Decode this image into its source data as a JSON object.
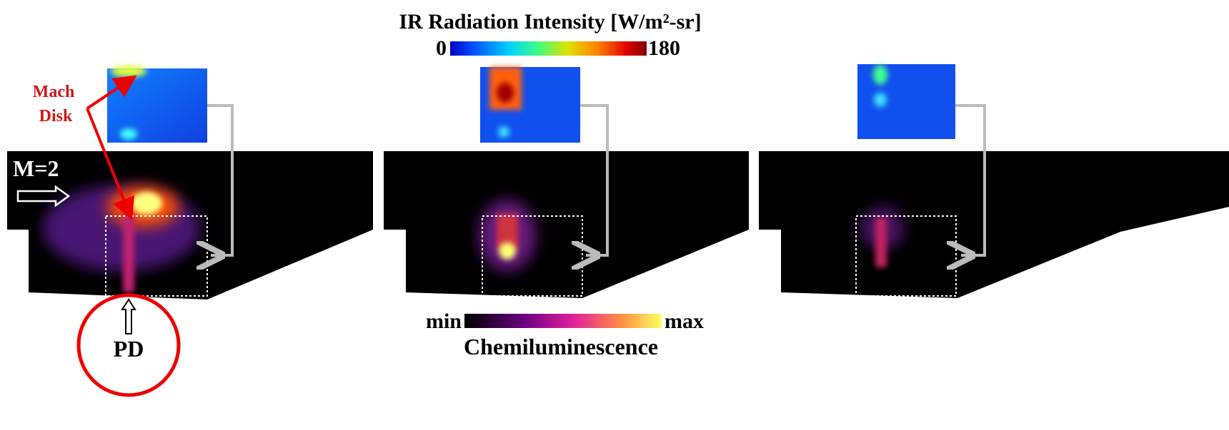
{
  "ir_colorbar": {
    "title": "IR Radiation Intensity [W/m²-sr]",
    "min": 0,
    "max": 180
  },
  "chemi_colorbar": {
    "min_label": "min",
    "max_label": "max",
    "title": "Chemiluminescence"
  },
  "annotations": {
    "mach_disk": [
      "Mach",
      "Disk"
    ],
    "mach_number": "M=2",
    "pd": "PD"
  }
}
